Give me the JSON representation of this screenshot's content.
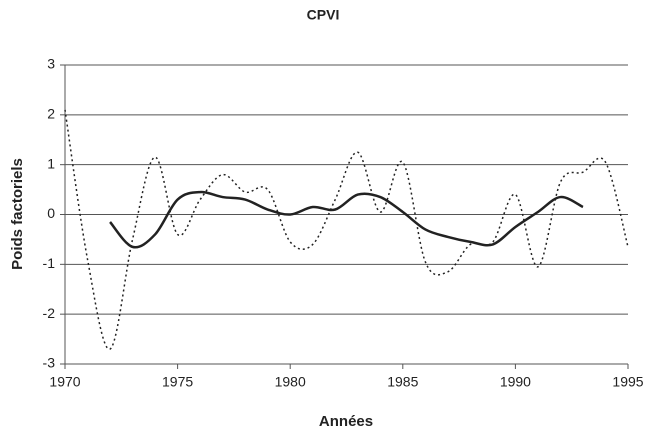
{
  "chart_data": {
    "type": "line",
    "title": "CPVI",
    "xlabel": "Années",
    "ylabel": "Poids factoriels",
    "x": [
      1970,
      1971,
      1972,
      1973,
      1974,
      1975,
      1976,
      1977,
      1978,
      1979,
      1980,
      1981,
      1982,
      1983,
      1984,
      1985,
      1986,
      1987,
      1988,
      1989,
      1990,
      1991,
      1992,
      1993,
      1994,
      1995
    ],
    "series": [
      {
        "color": "#222222",
        "dash": true,
        "smooth": true,
        "values": [
          2.1,
          -0.9,
          -2.7,
          -0.5,
          1.15,
          -0.4,
          0.3,
          0.8,
          0.45,
          0.5,
          -0.55,
          -0.6,
          0.3,
          1.25,
          0.05,
          1.05,
          -0.95,
          -1.15,
          -0.6,
          -0.55,
          0.4,
          -1.05,
          0.65,
          0.85,
          1.05,
          -0.65
        ]
      },
      {
        "color": "#222222",
        "dash": false,
        "smooth": true,
        "values": [
          null,
          null,
          -0.15,
          -0.65,
          -0.4,
          0.3,
          0.45,
          0.35,
          0.3,
          0.1,
          0.0,
          0.15,
          0.1,
          0.4,
          0.35,
          0.05,
          -0.3,
          -0.45,
          -0.55,
          -0.6,
          -0.25,
          0.05,
          0.35,
          0.15,
          null,
          null
        ]
      }
    ],
    "xlim": [
      1970,
      1995
    ],
    "xticks": [
      1970,
      1975,
      1980,
      1985,
      1990,
      1995
    ],
    "ylim": [
      -3,
      3
    ],
    "yticks": [
      -3,
      -2,
      -1,
      0,
      1,
      2,
      3
    ],
    "grid": true
  }
}
